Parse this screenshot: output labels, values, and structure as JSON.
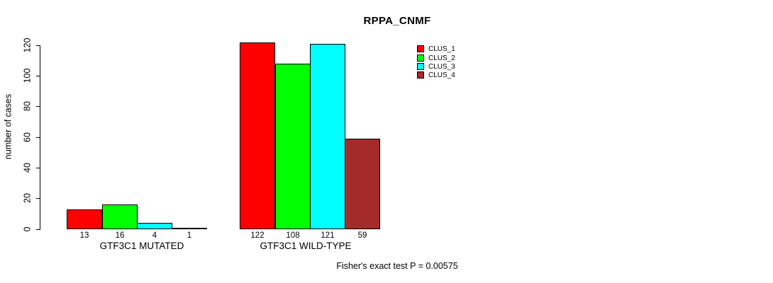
{
  "figure": {
    "background": "#FFFFFF",
    "axis_color": "#000000"
  },
  "chart_data": {
    "type": "bar",
    "title": "RPPA_CNMF",
    "ylabel": "number of cases",
    "xlabel": "",
    "ylim": [
      0,
      120
    ],
    "yticks": [
      0,
      20,
      40,
      60,
      80,
      100,
      120
    ],
    "grid": false,
    "legend_position": "top-right",
    "bar_value_labels_shown": true,
    "categories": [
      "GTF3C1 MUTATED",
      "GTF3C1 WILD-TYPE"
    ],
    "series": [
      {
        "name": "CLUS_1",
        "color": "#FF0000",
        "values": [
          13,
          122
        ]
      },
      {
        "name": "CLUS_2",
        "color": "#00FF00",
        "values": [
          16,
          108
        ]
      },
      {
        "name": "CLUS_3",
        "color": "#00FFFF",
        "values": [
          4,
          121
        ]
      },
      {
        "name": "CLUS_4",
        "color": "#A52A2A",
        "values": [
          1,
          59
        ]
      }
    ],
    "annotation": "Fisher's exact test P = 0.00575"
  }
}
